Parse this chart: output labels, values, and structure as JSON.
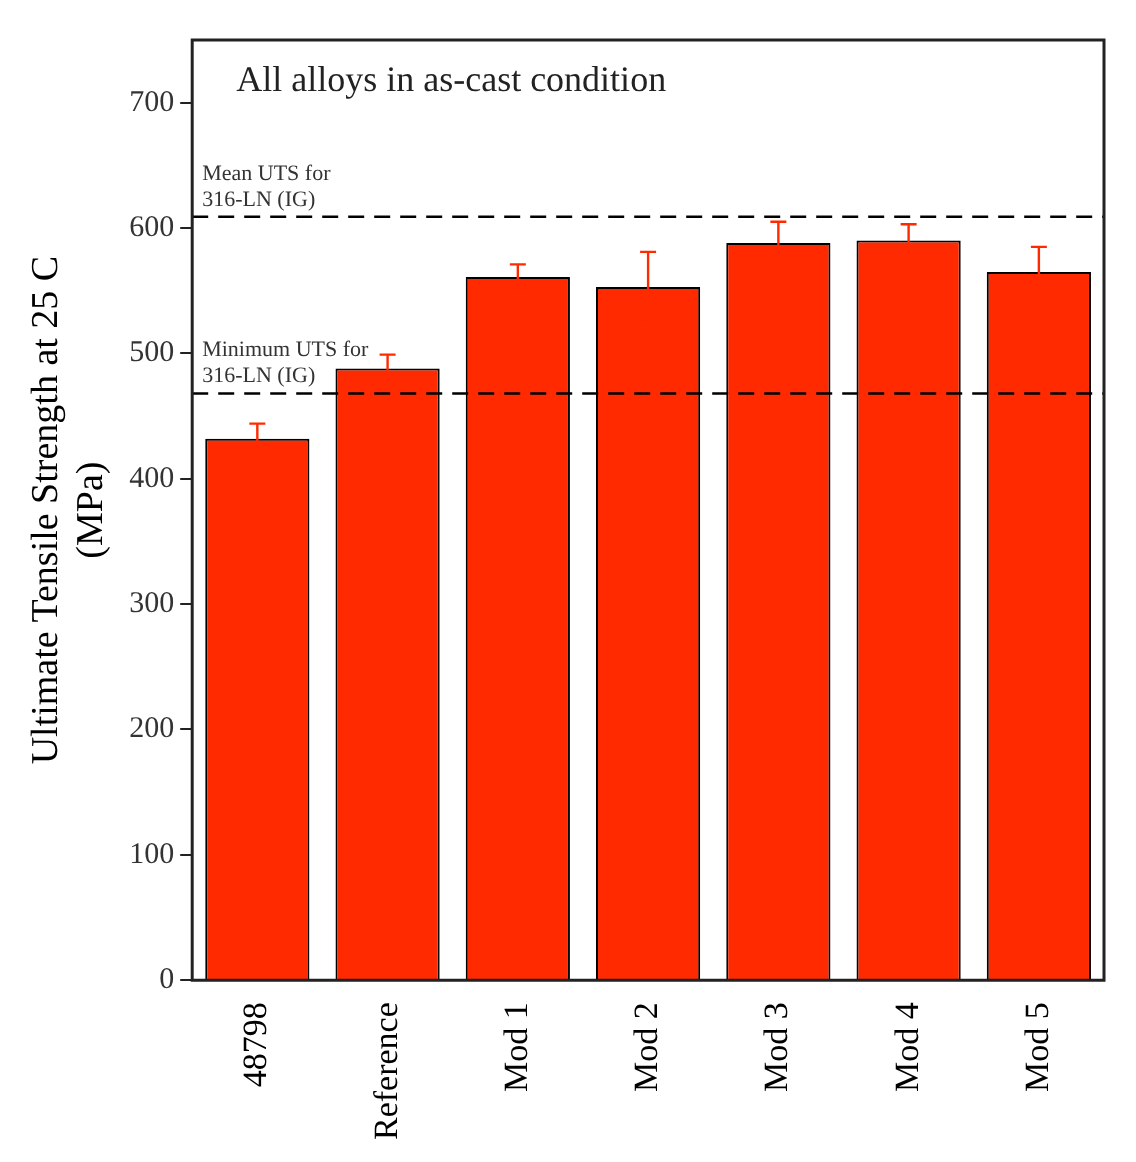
{
  "chart_data": {
    "type": "bar",
    "title": "All alloys in as-cast condition",
    "ylabel": "Ultimate Tensile Strength at 25 C\n(MPa)",
    "categories": [
      "48798",
      "Reference",
      "Mod 1",
      "Mod 2",
      "Mod 3",
      "Mod 4",
      "Mod 5"
    ],
    "series": [
      {
        "color": "#ff2a00",
        "values": [
          432,
          488,
          561,
          553,
          588,
          590,
          565
        ],
        "errors": [
          12,
          11,
          10,
          28,
          17,
          13,
          20
        ]
      }
    ],
    "ylim": [
      0,
      750
    ],
    "yticks": [
      0,
      100,
      200,
      300,
      400,
      500,
      600,
      700
    ],
    "grid": false,
    "legend": false,
    "ref_lines": [
      {
        "axis": "y",
        "value": 609,
        "label": "Mean UTS for\n316-LN (IG)",
        "line_style": "dashed",
        "color": "#000000"
      },
      {
        "axis": "y",
        "value": 468,
        "label": "Minimum UTS for\n316-LN (IG)",
        "line_style": "dashed",
        "color": "#000000"
      }
    ]
  }
}
